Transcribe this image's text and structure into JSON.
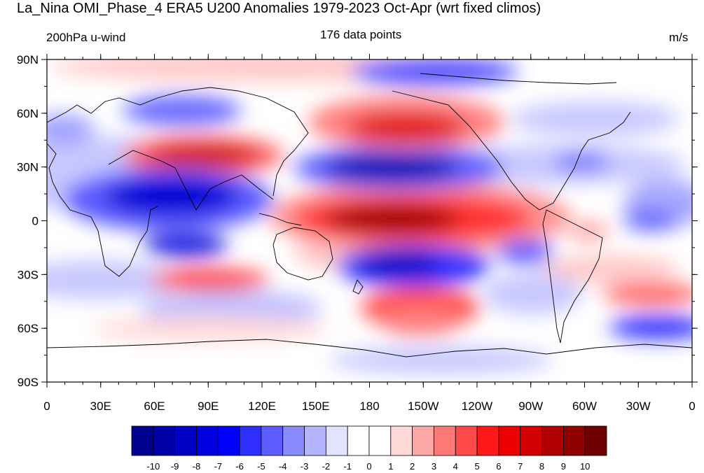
{
  "figure": {
    "title": "La_Nina OMI_Phase_4 ERA5 U200 Anomalies 1979-2023 Oct-Apr (wrt fixed climos)",
    "left_label": "200hPa u-wind",
    "center_label": "176 data points",
    "right_label": "m/s"
  },
  "axes": {
    "lat_ticks": [
      "90N",
      "60N",
      "30N",
      "0",
      "30S",
      "60S",
      "90S"
    ],
    "lon_ticks": [
      "0",
      "30E",
      "60E",
      "90E",
      "120E",
      "150E",
      "180",
      "150W",
      "120W",
      "90W",
      "60W",
      "30W",
      "0"
    ]
  },
  "colorbar": {
    "labels": [
      "-10",
      "-9",
      "-8",
      "-7",
      "-6",
      "-5",
      "-4",
      "-3",
      "-2",
      "-1",
      "0",
      "1",
      "2",
      "3",
      "4",
      "5",
      "6",
      "7",
      "8",
      "9",
      "10"
    ],
    "colors": [
      "#00008f",
      "#0000a8",
      "#0000c4",
      "#0000e0",
      "#0000ff",
      "#2e2eff",
      "#5c5cff",
      "#8a8aff",
      "#b4b4ff",
      "#e3e3ff",
      "#ffffff",
      "#ffffff",
      "#ffd8d8",
      "#ffa8a8",
      "#ff7878",
      "#ff4848",
      "#ff1818",
      "#ee0000",
      "#d00000",
      "#b00000",
      "#900000",
      "#700000"
    ]
  },
  "anomaly_features": [
    {
      "type": "positive",
      "lon_center": 185,
      "lat_center": 2,
      "peak": 10
    },
    {
      "type": "negative",
      "lon_center": 175,
      "lat_center": 28,
      "peak": -10
    },
    {
      "type": "positive",
      "lon_center": 190,
      "lat_center": 50,
      "peak": 8
    },
    {
      "type": "positive",
      "lon_center": 80,
      "lat_center": 35,
      "peak": 9
    },
    {
      "type": "negative",
      "lon_center": 75,
      "lat_center": 10,
      "peak": -8
    },
    {
      "type": "negative",
      "lon_center": 210,
      "lat_center": -25,
      "peak": -9
    },
    {
      "type": "positive",
      "lon_center": 215,
      "lat_center": -45,
      "peak": 6
    },
    {
      "type": "negative",
      "lon_center": 205,
      "lat_center": 75,
      "peak": -6
    },
    {
      "type": "negative",
      "lon_center": 80,
      "lat_center": -18,
      "peak": -6
    },
    {
      "type": "positive",
      "lon_center": 75,
      "lat_center": -32,
      "peak": 6
    },
    {
      "type": "negative",
      "lon_center": 330,
      "lat_center": -60,
      "peak": -6
    },
    {
      "type": "positive",
      "lon_center": 335,
      "lat_center": -40,
      "peak": 4
    }
  ]
}
